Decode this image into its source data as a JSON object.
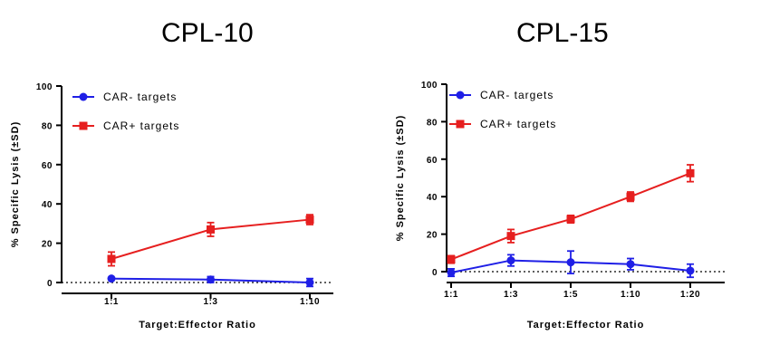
{
  "chart_data": [
    {
      "type": "line",
      "title": "CPL-10",
      "xlabel": "Target:Effector Ratio",
      "ylabel": "% Specific Lysis (±SD)",
      "categories": [
        "1:1",
        "1:3",
        "1:10"
      ],
      "ylim": [
        0,
        100
      ],
      "yticks": [
        "0",
        "20",
        "40",
        "60",
        "80",
        "100"
      ],
      "legend_position": "top-left",
      "series": [
        {
          "name": "CAR- targets",
          "color": "#1f1fe6",
          "marker": "circle",
          "values": [
            2,
            1.5,
            0
          ],
          "errors": [
            0.5,
            1.5,
            2
          ]
        },
        {
          "name": "CAR+ targets",
          "color": "#e61f1f",
          "marker": "square",
          "values": [
            12,
            27,
            32
          ],
          "errors": [
            3.5,
            3.5,
            2.5
          ]
        }
      ]
    },
    {
      "type": "line",
      "title": "CPL-15",
      "xlabel": "Target:Effector Ratio",
      "ylabel": "% Specific Lysis (±SD)",
      "categories": [
        "1:1",
        "1:3",
        "1:5",
        "1:10",
        "1:20"
      ],
      "ylim": [
        0,
        100
      ],
      "yticks": [
        "0",
        "20",
        "40",
        "60",
        "80",
        "100"
      ],
      "legend_position": "top-left",
      "series": [
        {
          "name": "CAR- targets",
          "color": "#1f1fe6",
          "marker": "circle",
          "values": [
            -0.5,
            6,
            5,
            4,
            0.5
          ],
          "errors": [
            2,
            3,
            6,
            3,
            3.5
          ]
        },
        {
          "name": "CAR+ targets",
          "color": "#e61f1f",
          "marker": "square",
          "values": [
            6.5,
            19,
            28,
            40,
            52.5
          ],
          "errors": [
            2,
            3.5,
            2,
            2.5,
            4.5
          ]
        }
      ]
    }
  ]
}
